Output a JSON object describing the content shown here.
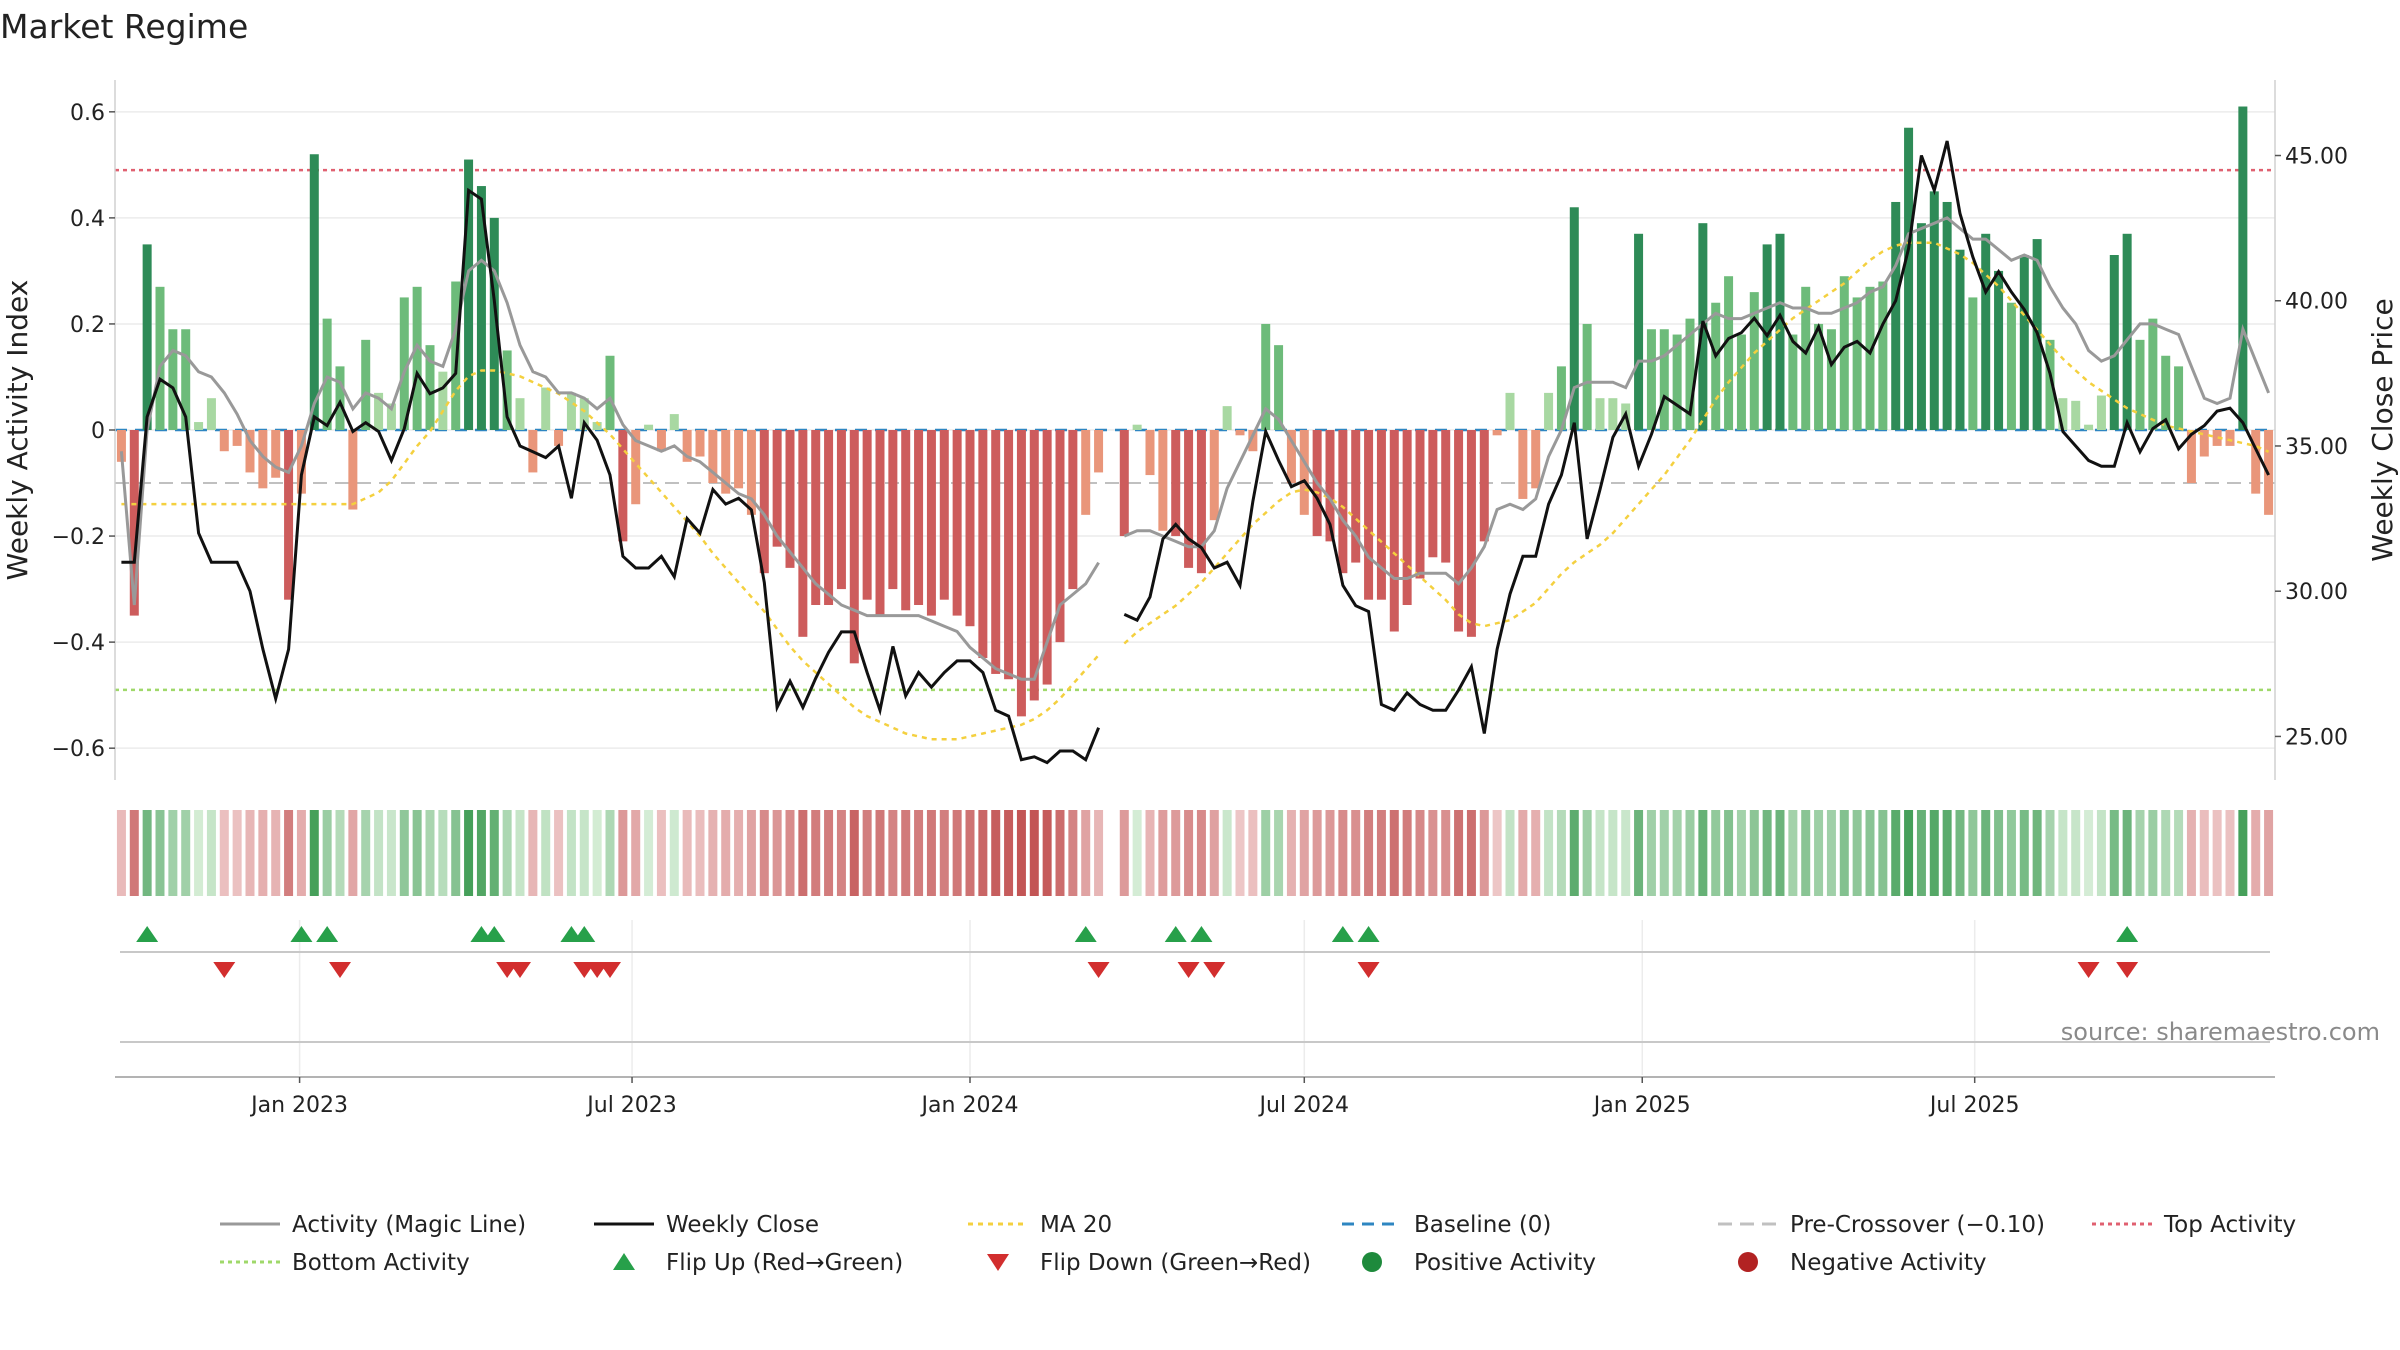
{
  "chart_data": {
    "type": "bar",
    "title": "Market Regime",
    "ylabel_left": "Weekly Activity Index",
    "ylabel_right": "Weekly Close Price",
    "source": "source: sharemaestro.com",
    "x_start": "2022-09-26",
    "x_step_days": 7,
    "x_ticks": [
      {
        "label": "Jan 2023",
        "date": "2023-01-01"
      },
      {
        "label": "Jul 2023",
        "date": "2023-07-01"
      },
      {
        "label": "Jan 2024",
        "date": "2024-01-01"
      },
      {
        "label": "Jul 2024",
        "date": "2024-07-01"
      },
      {
        "label": "Jan 2025",
        "date": "2025-01-01"
      },
      {
        "label": "Jul 2025",
        "date": "2025-07-01"
      }
    ],
    "ylim_left": [
      -0.66,
      0.66
    ],
    "yticks_left": [
      "−0.6",
      "−0.4",
      "−0.2",
      "0",
      "0.2",
      "0.4",
      "0.6"
    ],
    "ylim_right": [
      23.5,
      47.6
    ],
    "yticks_right": [
      "25.00",
      "30.00",
      "35.00",
      "40.00",
      "45.00"
    ],
    "reference_lines": {
      "baseline": 0,
      "pre_crossover": -0.1,
      "top_activity": 0.49,
      "bottom_activity": -0.49
    },
    "activity": [
      -0.06,
      -0.35,
      0.35,
      0.27,
      0.19,
      0.19,
      0.015,
      0.06,
      -0.04,
      -0.03,
      -0.08,
      -0.11,
      -0.09,
      -0.32,
      -0.12,
      0.52,
      0.21,
      0.12,
      -0.15,
      0.17,
      0.07,
      0.05,
      0.25,
      0.27,
      0.16,
      0.11,
      0.28,
      0.51,
      0.46,
      0.4,
      0.15,
      0.06,
      -0.08,
      0.08,
      -0.03,
      0.07,
      0.06,
      0.015,
      0.14,
      -0.21,
      -0.14,
      0.01,
      -0.04,
      0.03,
      -0.06,
      -0.05,
      -0.1,
      -0.12,
      -0.11,
      -0.16,
      -0.27,
      -0.22,
      -0.26,
      -0.39,
      -0.33,
      -0.33,
      -0.3,
      -0.44,
      -0.32,
      -0.35,
      -0.3,
      -0.34,
      -0.33,
      -0.35,
      -0.32,
      -0.35,
      -0.37,
      -0.43,
      -0.46,
      -0.47,
      -0.54,
      -0.51,
      -0.48,
      -0.4,
      -0.3,
      -0.16,
      -0.08,
      null,
      -0.2,
      0.01,
      -0.085,
      -0.19,
      -0.2,
      -0.26,
      -0.27,
      -0.17,
      0.045,
      -0.01,
      -0.04,
      0.2,
      0.16,
      -0.1,
      -0.16,
      -0.2,
      -0.21,
      -0.27,
      -0.25,
      -0.32,
      -0.32,
      -0.38,
      -0.33,
      -0.28,
      -0.24,
      -0.25,
      -0.38,
      -0.39,
      -0.21,
      -0.01,
      0.07,
      -0.13,
      -0.11,
      0.07,
      0.12,
      0.42,
      0.2,
      0.06,
      0.06,
      0.05,
      0.37,
      0.19,
      0.19,
      0.18,
      0.21,
      0.39,
      0.24,
      0.29,
      0.18,
      0.26,
      0.35,
      0.37,
      0.18,
      0.27,
      0.2,
      0.19,
      0.29,
      0.25,
      0.27,
      0.28,
      0.43,
      0.57,
      0.39,
      0.45,
      0.43,
      0.34,
      0.25,
      0.37,
      0.3,
      0.24,
      0.33,
      0.36,
      0.17,
      0.06,
      0.055,
      0.01,
      0.065,
      0.33,
      0.37,
      0.17,
      0.21,
      0.14,
      0.12,
      -0.1,
      -0.05,
      -0.03,
      -0.03,
      0.61,
      -0.12,
      -0.16
    ],
    "activity_line": [
      -0.04,
      -0.33,
      0.0,
      0.12,
      0.15,
      0.14,
      0.11,
      0.1,
      0.07,
      0.03,
      -0.02,
      -0.05,
      -0.07,
      -0.08,
      -0.03,
      0.05,
      0.1,
      0.09,
      0.04,
      0.07,
      0.06,
      0.04,
      0.11,
      0.16,
      0.13,
      0.12,
      0.19,
      0.3,
      0.32,
      0.3,
      0.24,
      0.16,
      0.11,
      0.1,
      0.07,
      0.07,
      0.06,
      0.04,
      0.06,
      0.01,
      -0.02,
      -0.03,
      -0.04,
      -0.03,
      -0.05,
      -0.06,
      -0.08,
      -0.1,
      -0.12,
      -0.13,
      -0.16,
      -0.2,
      -0.23,
      -0.26,
      -0.29,
      -0.31,
      -0.33,
      -0.34,
      -0.35,
      -0.35,
      -0.35,
      -0.35,
      -0.35,
      -0.36,
      -0.37,
      -0.38,
      -0.41,
      -0.43,
      -0.45,
      -0.46,
      -0.47,
      -0.47,
      -0.4,
      -0.33,
      -0.31,
      -0.29,
      -0.25,
      null,
      -0.2,
      -0.19,
      -0.19,
      -0.2,
      -0.21,
      -0.22,
      -0.22,
      -0.19,
      -0.11,
      -0.06,
      -0.01,
      0.04,
      0.02,
      -0.02,
      -0.06,
      -0.1,
      -0.13,
      -0.17,
      -0.2,
      -0.24,
      -0.26,
      -0.28,
      -0.28,
      -0.27,
      -0.27,
      -0.27,
      -0.29,
      -0.26,
      -0.22,
      -0.15,
      -0.14,
      -0.15,
      -0.13,
      -0.05,
      0.0,
      0.08,
      0.09,
      0.09,
      0.09,
      0.08,
      0.13,
      0.13,
      0.14,
      0.16,
      0.18,
      0.2,
      0.22,
      0.21,
      0.21,
      0.22,
      0.23,
      0.24,
      0.23,
      0.23,
      0.22,
      0.22,
      0.23,
      0.24,
      0.26,
      0.27,
      0.31,
      0.37,
      0.38,
      0.39,
      0.4,
      0.38,
      0.36,
      0.36,
      0.34,
      0.32,
      0.33,
      0.32,
      0.27,
      0.23,
      0.2,
      0.15,
      0.13,
      0.14,
      0.17,
      0.2,
      0.2,
      0.19,
      0.18,
      0.12,
      0.06,
      0.05,
      0.06,
      0.19,
      0.13,
      0.07
    ],
    "close": [
      31.0,
      31.0,
      36.0,
      37.3,
      37.0,
      36.0,
      32.0,
      31.0,
      31.0,
      31.0,
      30.0,
      28.0,
      26.3,
      28.0,
      34.0,
      36.0,
      35.7,
      36.5,
      35.5,
      35.8,
      35.5,
      34.5,
      35.6,
      37.5,
      36.8,
      37.0,
      37.5,
      43.8,
      43.5,
      40.0,
      36.0,
      35.0,
      34.8,
      34.6,
      35.0,
      33.2,
      35.8,
      35.2,
      34.0,
      31.2,
      30.8,
      30.8,
      31.2,
      30.5,
      32.5,
      32.0,
      33.5,
      33.0,
      33.2,
      32.8,
      30.3,
      26.0,
      26.9,
      26.0,
      27.0,
      27.9,
      28.6,
      28.6,
      27.2,
      25.9,
      28.1,
      26.4,
      27.2,
      26.7,
      27.2,
      27.6,
      27.6,
      27.2,
      25.9,
      25.7,
      24.2,
      24.3,
      24.1,
      24.5,
      24.5,
      24.2,
      25.3,
      null,
      29.2,
      29.0,
      29.8,
      31.8,
      32.3,
      31.8,
      31.5,
      30.8,
      31.0,
      30.2,
      33.1,
      35.5,
      34.5,
      33.6,
      33.8,
      33.2,
      32.3,
      30.2,
      29.5,
      29.3,
      26.1,
      25.9,
      26.5,
      26.1,
      25.9,
      25.9,
      26.6,
      27.4,
      25.1,
      28.0,
      29.9,
      31.2,
      31.2,
      33.0,
      34.0,
      35.8,
      31.8,
      33.5,
      35.3,
      36.1,
      34.3,
      35.4,
      36.7,
      36.4,
      36.1,
      39.3,
      38.1,
      38.7,
      38.9,
      39.4,
      38.8,
      39.5,
      38.6,
      38.2,
      39.1,
      37.8,
      38.4,
      38.6,
      38.2,
      39.2,
      40.0,
      41.8,
      45.0,
      43.8,
      45.5,
      43.0,
      41.5,
      40.3,
      41.0,
      40.3,
      39.7,
      38.9,
      37.5,
      35.5,
      35.0,
      34.5,
      34.3,
      34.3,
      35.8,
      34.8,
      35.6,
      35.9,
      34.9,
      35.4,
      35.7,
      36.2,
      36.3,
      35.8,
      34.9,
      34.0
    ],
    "ma20": [
      33.0,
      33.0,
      33.0,
      33.0,
      33.0,
      33.0,
      33.0,
      33.0,
      33.0,
      33.0,
      33.0,
      33.0,
      33.0,
      33.0,
      33.0,
      33.0,
      33.0,
      33.0,
      33.0,
      33.2,
      33.4,
      33.8,
      34.4,
      35.0,
      35.5,
      36.2,
      36.9,
      37.4,
      37.6,
      37.6,
      37.5,
      37.4,
      37.2,
      37.0,
      36.8,
      36.5,
      36.2,
      35.8,
      35.4,
      34.9,
      34.4,
      33.9,
      33.4,
      32.9,
      32.4,
      31.9,
      31.3,
      30.8,
      30.3,
      29.8,
      29.3,
      28.7,
      28.1,
      27.6,
      27.2,
      26.8,
      26.4,
      26.0,
      25.7,
      25.5,
      25.3,
      25.1,
      25.0,
      24.9,
      24.9,
      24.9,
      25.0,
      25.1,
      25.2,
      25.3,
      25.4,
      25.6,
      25.9,
      26.3,
      26.8,
      27.3,
      27.8,
      null,
      28.2,
      28.6,
      28.9,
      29.2,
      29.5,
      29.9,
      30.3,
      30.8,
      31.3,
      31.8,
      32.3,
      32.7,
      33.1,
      33.4,
      33.5,
      33.4,
      33.2,
      32.9,
      32.5,
      32.1,
      31.7,
      31.3,
      30.9,
      30.5,
      30.1,
      29.7,
      29.2,
      28.9,
      28.8,
      28.9,
      29.0,
      29.3,
      29.6,
      30.1,
      30.6,
      31.0,
      31.3,
      31.6,
      32.0,
      32.5,
      33.0,
      33.5,
      34.0,
      34.6,
      35.2,
      35.9,
      36.6,
      37.2,
      37.7,
      38.2,
      38.6,
      39.0,
      39.4,
      39.7,
      40.0,
      40.3,
      40.6,
      41.0,
      41.4,
      41.7,
      41.9,
      42.0,
      42.0,
      42.0,
      41.8,
      41.6,
      41.3,
      40.9,
      40.5,
      40.0,
      39.5,
      39.0,
      38.5,
      38.0,
      37.6,
      37.2,
      36.9,
      36.6,
      36.3,
      36.1,
      35.9,
      35.7,
      35.6,
      35.5,
      35.4,
      35.3,
      35.2,
      35.1,
      35.0,
      34.8
    ],
    "flip_up_index": [
      2,
      14,
      16,
      28,
      29,
      35,
      36,
      75,
      82,
      84,
      95,
      97,
      156
    ],
    "flip_down_index": [
      8,
      17,
      30,
      31,
      36,
      37,
      38,
      76,
      83,
      85,
      97,
      153,
      156
    ],
    "legend": [
      {
        "label": "Activity (Magic Line)",
        "kind": "line",
        "color": "#999999",
        "dash": ""
      },
      {
        "label": "Weekly Close",
        "kind": "line",
        "color": "#111111",
        "dash": ""
      },
      {
        "label": "MA 20",
        "kind": "line",
        "color": "#f4d03f",
        "dash": "5,5"
      },
      {
        "label": "Baseline (0)",
        "kind": "line",
        "color": "#2e86c1",
        "dash": "12,8"
      },
      {
        "label": "Pre-Crossover (−0.10)",
        "kind": "line",
        "color": "#c0c0c0",
        "dash": "14,8"
      },
      {
        "label": "Top Activity",
        "kind": "line",
        "color": "#e06070",
        "dash": "4,4"
      },
      {
        "label": "Bottom Activity",
        "kind": "line",
        "color": "#9fd86a",
        "dash": "4,4"
      },
      {
        "label": "Flip Up (Red→Green)",
        "kind": "tri-up",
        "color": "#27a04a",
        "dash": ""
      },
      {
        "label": "Flip Down (Green→Red)",
        "kind": "tri-down",
        "color": "#d22e2e",
        "dash": ""
      },
      {
        "label": "Positive Activity",
        "kind": "dot",
        "color": "#1e8a3c",
        "dash": ""
      },
      {
        "label": "Negative Activity",
        "kind": "dot",
        "color": "#b22222",
        "dash": ""
      }
    ],
    "colors": {
      "pos_strong": "#2e8b57",
      "pos_mid": "#6dbb7a",
      "pos_light": "#a8d8a2",
      "neg_strong": "#cd5c5c",
      "neg_light": "#e9967a",
      "magic_line": "#999999",
      "close_line": "#111111",
      "ma_line": "#f4d03f",
      "baseline": "#2e86c1",
      "pre_cross": "#c0c0c0",
      "top": "#e06070",
      "bottom": "#9fd86a",
      "flip_up": "#27a04a",
      "flip_down": "#d22e2e"
    }
  }
}
